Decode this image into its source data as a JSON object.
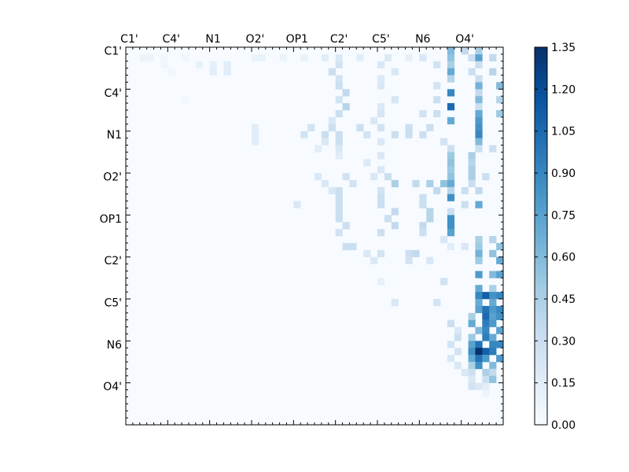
{
  "chart_data": {
    "type": "heatmap",
    "title": "",
    "xlabel": "",
    "ylabel": "",
    "matrix_size": 54,
    "x_tick_labels": [
      "C1'",
      "C4'",
      "N1",
      "O2'",
      "OP1",
      "C2'",
      "C5'",
      "N6",
      "O4'"
    ],
    "y_tick_labels": [
      "C1'",
      "C4'",
      "N1",
      "O2'",
      "OP1",
      "C2'",
      "C5'",
      "N6",
      "O4'"
    ],
    "label_spacing": 6,
    "colormap": "Blues",
    "color_low": "#f7fbff",
    "color_high": "#08306b",
    "vmin": 0.0,
    "vmax": 1.35,
    "colorbar_ticks": [
      "0.00",
      "0.15",
      "0.30",
      "0.45",
      "0.60",
      "0.75",
      "0.90",
      "1.05",
      "1.20",
      "1.35"
    ],
    "grid": false,
    "note_values": "approximate cell intensities read from the colour scale; upper-triangle pattern with strong values near the last columns",
    "cells": [
      {
        "r": 1,
        "c": 2,
        "v": 0.08
      },
      {
        "r": 1,
        "c": 3,
        "v": 0.08
      },
      {
        "r": 1,
        "c": 5,
        "v": 0.05
      },
      {
        "r": 1,
        "c": 8,
        "v": 0.05
      },
      {
        "r": 1,
        "c": 18,
        "v": 0.08
      },
      {
        "r": 1,
        "c": 19,
        "v": 0.1
      },
      {
        "r": 1,
        "c": 22,
        "v": 0.08
      },
      {
        "r": 1,
        "c": 25,
        "v": 0.1
      },
      {
        "r": 1,
        "c": 28,
        "v": 0.15
      },
      {
        "r": 1,
        "c": 30,
        "v": 0.18
      },
      {
        "r": 1,
        "c": 33,
        "v": 0.15
      },
      {
        "r": 1,
        "c": 37,
        "v": 0.18
      },
      {
        "r": 1,
        "c": 40,
        "v": 0.12
      },
      {
        "r": 1,
        "c": 42,
        "v": 0.2
      },
      {
        "r": 1,
        "c": 46,
        "v": 0.55
      },
      {
        "r": 1,
        "c": 49,
        "v": 0.3
      },
      {
        "r": 1,
        "c": 50,
        "v": 0.75
      },
      {
        "r": 1,
        "c": 52,
        "v": 0.35
      },
      {
        "r": 0,
        "c": 46,
        "v": 0.6
      },
      {
        "r": 0,
        "c": 48,
        "v": 0.35
      },
      {
        "r": 0,
        "c": 50,
        "v": 0.45
      },
      {
        "r": 2,
        "c": 5,
        "v": 0.06
      },
      {
        "r": 2,
        "c": 10,
        "v": 0.1
      },
      {
        "r": 2,
        "c": 12,
        "v": 0.12
      },
      {
        "r": 2,
        "c": 14,
        "v": 0.15
      },
      {
        "r": 2,
        "c": 30,
        "v": 0.25
      },
      {
        "r": 2,
        "c": 36,
        "v": 0.2
      },
      {
        "r": 2,
        "c": 44,
        "v": 0.25
      },
      {
        "r": 2,
        "c": 46,
        "v": 0.45
      },
      {
        "r": 2,
        "c": 50,
        "v": 0.3
      },
      {
        "r": 3,
        "c": 6,
        "v": 0.05
      },
      {
        "r": 3,
        "c": 12,
        "v": 0.15
      },
      {
        "r": 3,
        "c": 14,
        "v": 0.15
      },
      {
        "r": 3,
        "c": 29,
        "v": 0.3
      },
      {
        "r": 3,
        "c": 38,
        "v": 0.2
      },
      {
        "r": 3,
        "c": 46,
        "v": 0.7
      },
      {
        "r": 3,
        "c": 49,
        "v": 0.3
      },
      {
        "r": 3,
        "c": 52,
        "v": 0.4
      },
      {
        "r": 4,
        "c": 30,
        "v": 0.25
      },
      {
        "r": 4,
        "c": 36,
        "v": 0.18
      },
      {
        "r": 4,
        "c": 46,
        "v": 0.4
      },
      {
        "r": 4,
        "c": 50,
        "v": 0.3
      },
      {
        "r": 5,
        "c": 30,
        "v": 0.3
      },
      {
        "r": 5,
        "c": 36,
        "v": 0.2
      },
      {
        "r": 5,
        "c": 44,
        "v": 0.25
      },
      {
        "r": 5,
        "c": 50,
        "v": 0.65
      },
      {
        "r": 5,
        "c": 53,
        "v": 0.6
      },
      {
        "r": 6,
        "c": 31,
        "v": 0.35
      },
      {
        "r": 6,
        "c": 46,
        "v": 0.9
      },
      {
        "r": 6,
        "c": 50,
        "v": 0.35
      },
      {
        "r": 7,
        "c": 8,
        "v": 0.05
      },
      {
        "r": 7,
        "c": 30,
        "v": 0.25
      },
      {
        "r": 7,
        "c": 38,
        "v": 0.22
      },
      {
        "r": 7,
        "c": 44,
        "v": 0.3
      },
      {
        "r": 7,
        "c": 50,
        "v": 0.6
      },
      {
        "r": 7,
        "c": 53,
        "v": 0.4
      },
      {
        "r": 8,
        "c": 31,
        "v": 0.4
      },
      {
        "r": 8,
        "c": 36,
        "v": 0.18
      },
      {
        "r": 8,
        "c": 46,
        "v": 1.05
      },
      {
        "r": 8,
        "c": 50,
        "v": 0.3
      },
      {
        "r": 9,
        "c": 30,
        "v": 0.3
      },
      {
        "r": 9,
        "c": 36,
        "v": 0.22
      },
      {
        "r": 9,
        "c": 42,
        "v": 0.25
      },
      {
        "r": 9,
        "c": 44,
        "v": 0.3
      },
      {
        "r": 9,
        "c": 50,
        "v": 0.7
      },
      {
        "r": 9,
        "c": 53,
        "v": 0.5
      },
      {
        "r": 10,
        "c": 29,
        "v": 0.2
      },
      {
        "r": 10,
        "c": 35,
        "v": 0.2
      },
      {
        "r": 10,
        "c": 46,
        "v": 0.7
      },
      {
        "r": 10,
        "c": 50,
        "v": 0.8
      },
      {
        "r": 11,
        "c": 18,
        "v": 0.15
      },
      {
        "r": 11,
        "c": 26,
        "v": 0.25
      },
      {
        "r": 11,
        "c": 29,
        "v": 0.3
      },
      {
        "r": 11,
        "c": 33,
        "v": 0.3
      },
      {
        "r": 11,
        "c": 36,
        "v": 0.25
      },
      {
        "r": 11,
        "c": 40,
        "v": 0.3
      },
      {
        "r": 11,
        "c": 43,
        "v": 0.3
      },
      {
        "r": 11,
        "c": 50,
        "v": 0.85
      },
      {
        "r": 12,
        "c": 18,
        "v": 0.15
      },
      {
        "r": 12,
        "c": 25,
        "v": 0.25
      },
      {
        "r": 12,
        "c": 28,
        "v": 0.3
      },
      {
        "r": 12,
        "c": 30,
        "v": 0.3
      },
      {
        "r": 12,
        "c": 34,
        "v": 0.25
      },
      {
        "r": 12,
        "c": 38,
        "v": 0.3
      },
      {
        "r": 12,
        "c": 40,
        "v": 0.3
      },
      {
        "r": 12,
        "c": 42,
        "v": 0.3
      },
      {
        "r": 12,
        "c": 50,
        "v": 0.9
      },
      {
        "r": 13,
        "c": 18,
        "v": 0.15
      },
      {
        "r": 13,
        "c": 28,
        "v": 0.2
      },
      {
        "r": 13,
        "c": 30,
        "v": 0.3
      },
      {
        "r": 13,
        "c": 36,
        "v": 0.2
      },
      {
        "r": 13,
        "c": 45,
        "v": 0.25
      },
      {
        "r": 13,
        "c": 50,
        "v": 0.6
      },
      {
        "r": 14,
        "c": 27,
        "v": 0.15
      },
      {
        "r": 14,
        "c": 30,
        "v": 0.2
      },
      {
        "r": 14,
        "c": 46,
        "v": 0.3
      },
      {
        "r": 14,
        "c": 50,
        "v": 0.3
      },
      {
        "r": 14,
        "c": 52,
        "v": 0.3
      },
      {
        "r": 15,
        "c": 30,
        "v": 0.15
      },
      {
        "r": 15,
        "c": 36,
        "v": 0.2
      },
      {
        "r": 15,
        "c": 46,
        "v": 0.5
      },
      {
        "r": 15,
        "c": 49,
        "v": 0.45
      },
      {
        "r": 16,
        "c": 34,
        "v": 0.18
      },
      {
        "r": 16,
        "c": 46,
        "v": 0.55
      },
      {
        "r": 16,
        "c": 49,
        "v": 0.4
      },
      {
        "r": 17,
        "c": 36,
        "v": 0.2
      },
      {
        "r": 17,
        "c": 46,
        "v": 0.5
      },
      {
        "r": 17,
        "c": 49,
        "v": 0.45
      },
      {
        "r": 18,
        "c": 27,
        "v": 0.2
      },
      {
        "r": 18,
        "c": 31,
        "v": 0.25
      },
      {
        "r": 18,
        "c": 35,
        "v": 0.2
      },
      {
        "r": 18,
        "c": 37,
        "v": 0.3
      },
      {
        "r": 18,
        "c": 46,
        "v": 0.55
      },
      {
        "r": 18,
        "c": 49,
        "v": 0.45
      },
      {
        "r": 18,
        "c": 51,
        "v": 0.3
      },
      {
        "r": 19,
        "c": 28,
        "v": 0.2
      },
      {
        "r": 19,
        "c": 32,
        "v": 0.25
      },
      {
        "r": 19,
        "c": 38,
        "v": 0.45
      },
      {
        "r": 19,
        "c": 41,
        "v": 0.35
      },
      {
        "r": 19,
        "c": 43,
        "v": 0.45
      },
      {
        "r": 19,
        "c": 45,
        "v": 0.55
      },
      {
        "r": 19,
        "c": 46,
        "v": 0.7
      },
      {
        "r": 19,
        "c": 49,
        "v": 0.3
      },
      {
        "r": 20,
        "c": 29,
        "v": 0.2
      },
      {
        "r": 20,
        "c": 30,
        "v": 0.3
      },
      {
        "r": 20,
        "c": 36,
        "v": 0.25
      },
      {
        "r": 20,
        "c": 44,
        "v": 0.35
      },
      {
        "r": 20,
        "c": 46,
        "v": 0.4
      },
      {
        "r": 20,
        "c": 48,
        "v": 0.3
      },
      {
        "r": 20,
        "c": 50,
        "v": 0.35
      },
      {
        "r": 21,
        "c": 30,
        "v": 0.3
      },
      {
        "r": 21,
        "c": 36,
        "v": 0.3
      },
      {
        "r": 21,
        "c": 42,
        "v": 0.3
      },
      {
        "r": 21,
        "c": 46,
        "v": 0.85
      },
      {
        "r": 22,
        "c": 24,
        "v": 0.2
      },
      {
        "r": 22,
        "c": 30,
        "v": 0.3
      },
      {
        "r": 22,
        "c": 36,
        "v": 0.3
      },
      {
        "r": 22,
        "c": 42,
        "v": 0.3
      },
      {
        "r": 22,
        "c": 48,
        "v": 0.3
      },
      {
        "r": 22,
        "c": 50,
        "v": 0.7
      },
      {
        "r": 23,
        "c": 30,
        "v": 0.3
      },
      {
        "r": 23,
        "c": 38,
        "v": 0.35
      },
      {
        "r": 23,
        "c": 43,
        "v": 0.4
      },
      {
        "r": 23,
        "c": 46,
        "v": 0.3
      },
      {
        "r": 24,
        "c": 30,
        "v": 0.3
      },
      {
        "r": 24,
        "c": 37,
        "v": 0.3
      },
      {
        "r": 24,
        "c": 43,
        "v": 0.4
      },
      {
        "r": 24,
        "c": 46,
        "v": 0.85
      },
      {
        "r": 25,
        "c": 31,
        "v": 0.3
      },
      {
        "r": 25,
        "c": 38,
        "v": 0.35
      },
      {
        "r": 25,
        "c": 42,
        "v": 0.35
      },
      {
        "r": 25,
        "c": 46,
        "v": 0.85
      },
      {
        "r": 26,
        "c": 30,
        "v": 0.25
      },
      {
        "r": 26,
        "c": 36,
        "v": 0.3
      },
      {
        "r": 26,
        "c": 42,
        "v": 0.3
      },
      {
        "r": 26,
        "c": 46,
        "v": 0.75
      },
      {
        "r": 27,
        "c": 45,
        "v": 0.2
      },
      {
        "r": 27,
        "c": 50,
        "v": 0.45
      },
      {
        "r": 27,
        "c": 52,
        "v": 0.4
      },
      {
        "r": 28,
        "c": 31,
        "v": 0.3
      },
      {
        "r": 28,
        "c": 32,
        "v": 0.3
      },
      {
        "r": 28,
        "c": 46,
        "v": 0.15
      },
      {
        "r": 28,
        "c": 48,
        "v": 0.2
      },
      {
        "r": 28,
        "c": 50,
        "v": 0.5
      },
      {
        "r": 28,
        "c": 53,
        "v": 0.55
      },
      {
        "r": 29,
        "c": 34,
        "v": 0.2
      },
      {
        "r": 29,
        "c": 36,
        "v": 0.25
      },
      {
        "r": 29,
        "c": 40,
        "v": 0.3
      },
      {
        "r": 29,
        "c": 41,
        "v": 0.35
      },
      {
        "r": 29,
        "c": 50,
        "v": 0.65
      },
      {
        "r": 29,
        "c": 52,
        "v": 0.55
      },
      {
        "r": 30,
        "c": 35,
        "v": 0.2
      },
      {
        "r": 30,
        "c": 40,
        "v": 0.25
      },
      {
        "r": 30,
        "c": 43,
        "v": 0.2
      },
      {
        "r": 30,
        "c": 50,
        "v": 0.5
      },
      {
        "r": 30,
        "c": 53,
        "v": 0.7
      },
      {
        "r": 32,
        "c": 50,
        "v": 0.8
      },
      {
        "r": 32,
        "c": 52,
        "v": 0.6
      },
      {
        "r": 32,
        "c": 53,
        "v": 0.75
      },
      {
        "r": 33,
        "c": 36,
        "v": 0.12
      },
      {
        "r": 33,
        "c": 45,
        "v": 0.25
      },
      {
        "r": 34,
        "c": 50,
        "v": 0.7
      },
      {
        "r": 34,
        "c": 52,
        "v": 0.45
      },
      {
        "r": 35,
        "c": 50,
        "v": 0.9
      },
      {
        "r": 35,
        "c": 51,
        "v": 1.1
      },
      {
        "r": 35,
        "c": 52,
        "v": 0.85
      },
      {
        "r": 35,
        "c": 53,
        "v": 0.9
      },
      {
        "r": 36,
        "c": 38,
        "v": 0.2
      },
      {
        "r": 36,
        "c": 44,
        "v": 0.25
      },
      {
        "r": 36,
        "c": 50,
        "v": 0.7
      },
      {
        "r": 36,
        "c": 52,
        "v": 0.7
      },
      {
        "r": 37,
        "c": 50,
        "v": 0.75
      },
      {
        "r": 37,
        "c": 51,
        "v": 1.0
      },
      {
        "r": 37,
        "c": 52,
        "v": 0.8
      },
      {
        "r": 37,
        "c": 53,
        "v": 0.9
      },
      {
        "r": 38,
        "c": 49,
        "v": 0.45
      },
      {
        "r": 38,
        "c": 51,
        "v": 1.05
      },
      {
        "r": 38,
        "c": 52,
        "v": 0.75
      },
      {
        "r": 38,
        "c": 53,
        "v": 0.85
      },
      {
        "r": 39,
        "c": 46,
        "v": 0.3
      },
      {
        "r": 39,
        "c": 49,
        "v": 0.7
      },
      {
        "r": 39,
        "c": 51,
        "v": 0.95
      },
      {
        "r": 39,
        "c": 52,
        "v": 0.8
      },
      {
        "r": 40,
        "c": 47,
        "v": 0.2
      },
      {
        "r": 40,
        "c": 50,
        "v": 0.6
      },
      {
        "r": 40,
        "c": 51,
        "v": 0.9
      },
      {
        "r": 40,
        "c": 53,
        "v": 0.75
      },
      {
        "r": 41,
        "c": 47,
        "v": 0.3
      },
      {
        "r": 41,
        "c": 49,
        "v": 0.5
      },
      {
        "r": 41,
        "c": 51,
        "v": 0.95
      },
      {
        "r": 41,
        "c": 52,
        "v": 0.7
      },
      {
        "r": 42,
        "c": 46,
        "v": 0.25
      },
      {
        "r": 42,
        "c": 49,
        "v": 0.75
      },
      {
        "r": 42,
        "c": 50,
        "v": 1.0
      },
      {
        "r": 42,
        "c": 52,
        "v": 0.9
      },
      {
        "r": 42,
        "c": 53,
        "v": 0.9
      },
      {
        "r": 43,
        "c": 47,
        "v": 0.25
      },
      {
        "r": 43,
        "c": 49,
        "v": 0.85
      },
      {
        "r": 43,
        "c": 50,
        "v": 1.35
      },
      {
        "r": 43,
        "c": 51,
        "v": 1.1
      },
      {
        "r": 43,
        "c": 52,
        "v": 0.95
      },
      {
        "r": 44,
        "c": 46,
        "v": 0.2
      },
      {
        "r": 44,
        "c": 49,
        "v": 0.7
      },
      {
        "r": 44,
        "c": 50,
        "v": 1.0
      },
      {
        "r": 44,
        "c": 51,
        "v": 0.8
      },
      {
        "r": 44,
        "c": 53,
        "v": 0.8
      },
      {
        "r": 45,
        "c": 47,
        "v": 0.2
      },
      {
        "r": 45,
        "c": 49,
        "v": 0.45
      },
      {
        "r": 45,
        "c": 50,
        "v": 0.85
      },
      {
        "r": 45,
        "c": 52,
        "v": 0.6
      },
      {
        "r": 46,
        "c": 48,
        "v": 0.2
      },
      {
        "r": 46,
        "c": 49,
        "v": 0.3
      },
      {
        "r": 46,
        "c": 51,
        "v": 0.45
      },
      {
        "r": 46,
        "c": 52,
        "v": 0.35
      },
      {
        "r": 47,
        "c": 49,
        "v": 0.2
      },
      {
        "r": 47,
        "c": 51,
        "v": 0.3
      },
      {
        "r": 47,
        "c": 52,
        "v": 0.55
      },
      {
        "r": 48,
        "c": 49,
        "v": 0.25
      },
      {
        "r": 48,
        "c": 50,
        "v": 0.2
      },
      {
        "r": 48,
        "c": 51,
        "v": 0.15
      },
      {
        "r": 49,
        "c": 51,
        "v": 0.08
      }
    ]
  }
}
